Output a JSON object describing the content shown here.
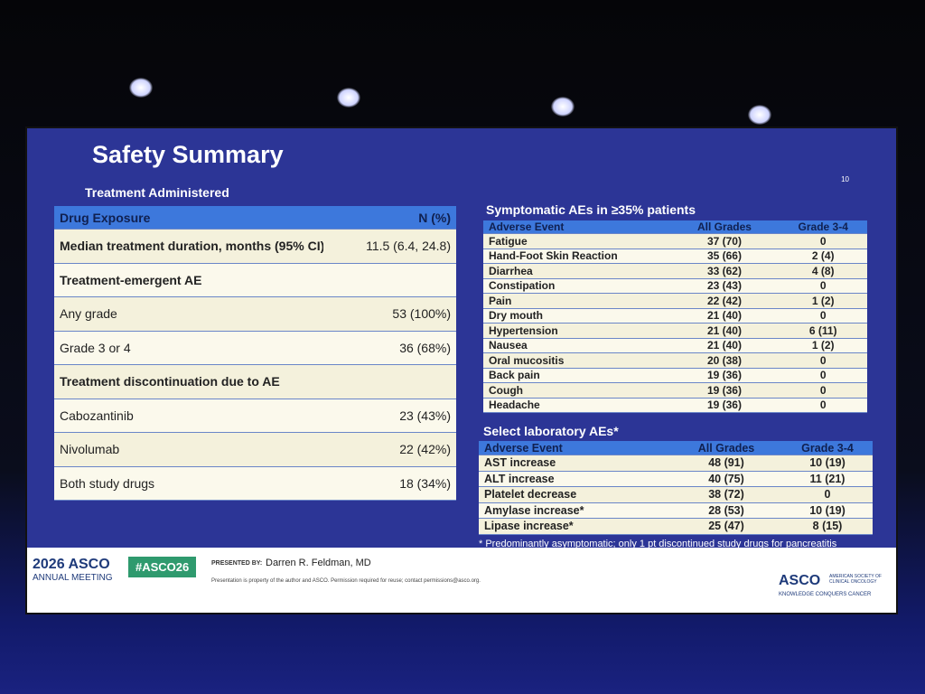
{
  "slide_number": "10",
  "title": "Safety Summary",
  "treatment": {
    "heading": "Treatment Administered",
    "header": [
      "Drug Exposure",
      "N (%)"
    ],
    "rows": [
      [
        "Median treatment duration, months (95% CI)",
        "11.5 (6.4, 24.8)"
      ],
      [
        "Treatment-emergent AE"
      ],
      [
        "Any grade",
        "53 (100%)"
      ],
      [
        "Grade 3 or 4",
        "36 (68%)"
      ],
      [
        "Treatment discontinuation due to AE"
      ],
      [
        "Cabozantinib",
        "23 (43%)"
      ],
      [
        "Nivolumab",
        "22 (42%)"
      ],
      [
        "Both study drugs",
        "18 (34%)"
      ]
    ]
  },
  "symptomatic": {
    "heading": "Symptomatic AEs in ≥35% patients",
    "header": [
      "Adverse Event",
      "All Grades",
      "Grade 3-4"
    ],
    "rows": [
      [
        "Fatigue",
        "37 (70)",
        "0"
      ],
      [
        "Hand-Foot Skin Reaction",
        "35 (66)",
        "2 (4)"
      ],
      [
        "Diarrhea",
        "33 (62)",
        "4 (8)"
      ],
      [
        "Constipation",
        "23 (43)",
        "0"
      ],
      [
        "Pain",
        "22 (42)",
        "1 (2)"
      ],
      [
        "Dry mouth",
        "21 (40)",
        "0"
      ],
      [
        "Hypertension",
        "21 (40)",
        "6 (11)"
      ],
      [
        "Nausea",
        "21 (40)",
        "1 (2)"
      ],
      [
        "Oral mucositis",
        "20 (38)",
        "0"
      ],
      [
        "Back pain",
        "19 (36)",
        "0"
      ],
      [
        "Cough",
        "19 (36)",
        "0"
      ],
      [
        "Headache",
        "19 (36)",
        "0"
      ]
    ]
  },
  "laboratory": {
    "heading": "Select laboratory AEs*",
    "header": [
      "Adverse Event",
      "All Grades",
      "Grade 3-4"
    ],
    "rows": [
      [
        "AST increase",
        "48 (91)",
        "10 (19)"
      ],
      [
        "ALT increase",
        "40 (75)",
        "11 (21)"
      ],
      [
        "Platelet decrease",
        "38 (72)",
        "0"
      ],
      [
        "Amylase increase*",
        "28 (53)",
        "10 (19)"
      ],
      [
        "Lipase increase*",
        "25 (47)",
        "8 (15)"
      ]
    ],
    "footnote": "* Predominantly asymptomatic; only 1 pt discontinued study drugs for pancreatitis"
  },
  "footer": {
    "meeting": "2026 ASCO",
    "meeting_sub": "ANNUAL MEETING",
    "hashtag": "#ASCO26",
    "presented_by_label": "PRESENTED BY:",
    "presenter": "Darren R. Feldman, MD",
    "disclaimer": "Presentation is property of the author and ASCO. Permission required for reuse; contact permissions@asco.org.",
    "logo": "ASCO",
    "logo_sub": "AMERICAN SOCIETY OF CLINICAL ONCOLOGY",
    "tagline": "KNOWLEDGE CONQUERS CANCER"
  }
}
